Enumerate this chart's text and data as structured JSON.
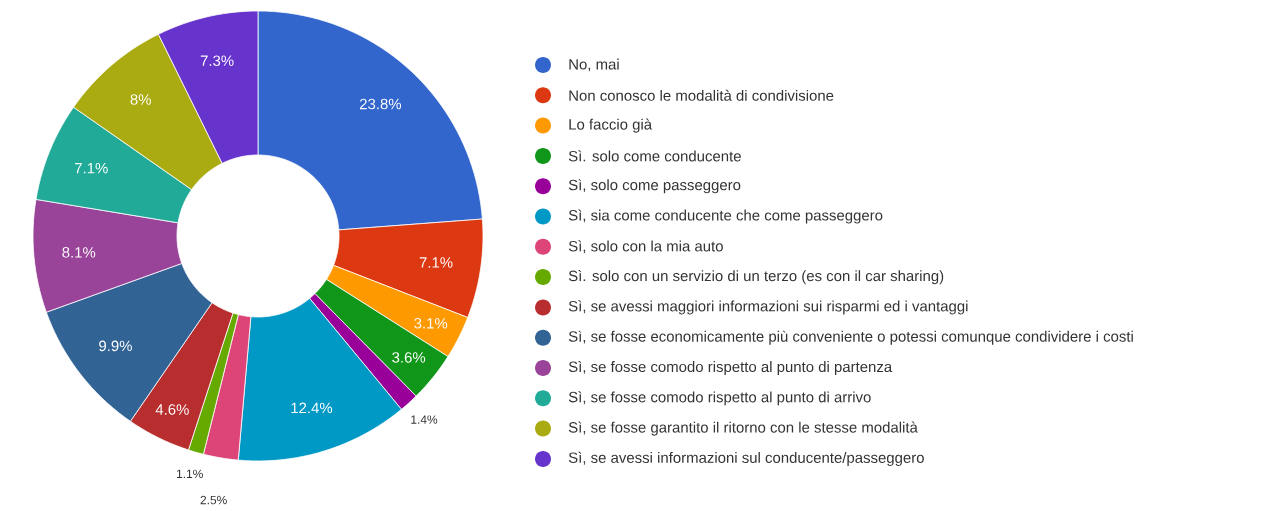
{
  "chart_data": {
    "type": "donut",
    "categories": [
      "No, mai",
      "Non conosco le modalità di condivisione",
      "Lo faccio già",
      "Sì. solo come conducente",
      "Sì, solo come passeggero",
      "Sì, sia come conducente che come passeggero",
      "Sì, solo con la mia auto",
      "Sì. solo con un servizio di un terzo (es con il car sharing)",
      "Sì, se avessi maggiori informazioni sui risparmi ed i vantaggi",
      "Sì, se fosse economicamente più conveniente o potessi comunque condividere i costi",
      "Sì, se fosse comodo rispetto al punto di partenza",
      "Sì, se fosse comodo rispetto al punto di arrivo",
      "Sì, se fosse garantito il ritorno con le stesse modalità",
      "Sì, se avessi informazioni sul conducente/passeggero"
    ],
    "values": [
      23.8,
      7.1,
      3.1,
      3.6,
      1.4,
      12.4,
      2.5,
      1.1,
      4.6,
      9.9,
      8.1,
      7.1,
      8,
      7.3
    ],
    "value_labels": [
      "23.8%",
      "7.1%",
      "3.1%",
      "3.6%",
      "1.4%",
      "12.4%",
      "2.5%",
      "1.1%",
      "4.6%",
      "9.9%",
      "8.1%",
      "7.1%",
      "8%",
      "7.3%"
    ],
    "colors": [
      "#3366cc",
      "#dc3912",
      "#ff9900",
      "#109618",
      "#990099",
      "#0099c6",
      "#dd4477",
      "#66aa00",
      "#b82e2e",
      "#316395",
      "#994499",
      "#22aa99",
      "#aaaa11",
      "#6633cc"
    ],
    "legend": "right"
  }
}
